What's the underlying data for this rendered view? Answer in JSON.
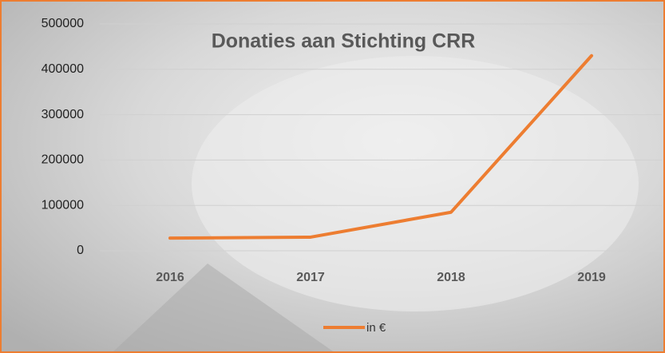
{
  "chart_data": {
    "type": "line",
    "title": "Donaties aan Stichting CRR",
    "categories": [
      "2016",
      "2017",
      "2018",
      "2019"
    ],
    "series": [
      {
        "name": "in €",
        "color": "#ed7d31",
        "values": [
          28000,
          30000,
          85000,
          430000
        ]
      }
    ],
    "ylim": [
      0,
      500000
    ],
    "yticks": [
      0,
      100000,
      200000,
      300000,
      400000,
      500000
    ],
    "grid": true,
    "legend": "bottom"
  }
}
